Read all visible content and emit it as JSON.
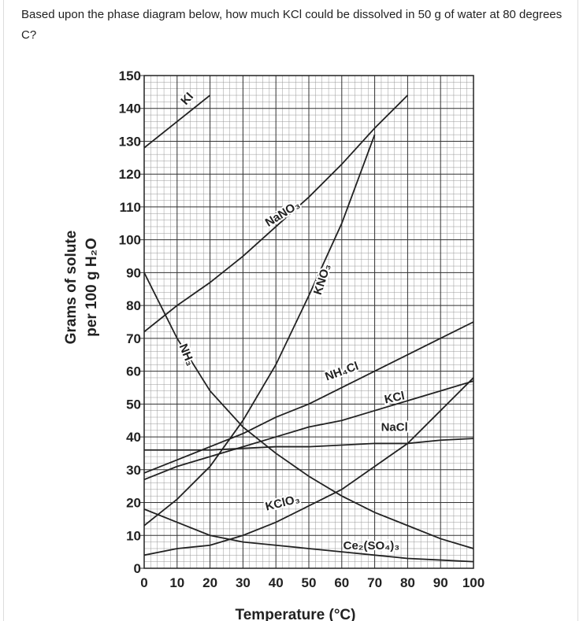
{
  "question": "Based upon the phase diagram below, how much KCl could be dissolved in 50 g of water at 80 degrees C?",
  "chart_data": {
    "type": "line",
    "ylabel": [
      "Grams of solute",
      "per 100 g H₂O"
    ],
    "xlabel": "Temperature (°C)",
    "x": [
      0,
      10,
      20,
      30,
      40,
      50,
      60,
      70,
      80,
      90,
      100
    ],
    "xlim": [
      0,
      100
    ],
    "ylim": [
      0,
      150
    ],
    "xticks": [
      0,
      10,
      20,
      30,
      40,
      50,
      60,
      70,
      80,
      90,
      100
    ],
    "yticks": [
      0,
      10,
      20,
      30,
      40,
      50,
      60,
      70,
      80,
      90,
      100,
      110,
      120,
      130,
      140,
      150
    ],
    "grid": true,
    "series": [
      {
        "name": "KI",
        "color": "#222222",
        "values": [
          128,
          136,
          144,
          null,
          null,
          null,
          null,
          null,
          null,
          null,
          null
        ]
      },
      {
        "name": "NaNO₃",
        "color": "#222222",
        "values": [
          72,
          80,
          87,
          95,
          104,
          113,
          123,
          134,
          144,
          null,
          null
        ]
      },
      {
        "name": "KNO₃",
        "color": "#222222",
        "values": [
          13,
          21,
          31,
          45,
          62,
          83,
          105,
          132,
          null,
          null,
          null
        ]
      },
      {
        "name": "NH₃",
        "color": "#222222",
        "values": [
          90,
          70,
          54,
          43,
          35,
          28,
          22,
          17,
          13,
          9,
          6
        ]
      },
      {
        "name": "NH₄Cl",
        "color": "#222222",
        "values": [
          29,
          33,
          37,
          41,
          46,
          50,
          55,
          60,
          65,
          70,
          75
        ]
      },
      {
        "name": "KCl",
        "color": "#222222",
        "values": [
          27,
          31,
          34,
          37,
          40,
          43,
          45,
          48,
          51,
          54,
          57
        ]
      },
      {
        "name": "NaCl",
        "color": "#222222",
        "values": [
          36,
          36,
          36,
          36.5,
          37,
          37,
          37.5,
          38,
          38,
          39,
          39.5
        ]
      },
      {
        "name": "KClO₃",
        "color": "#222222",
        "values": [
          4,
          6,
          7,
          10,
          14,
          19,
          24,
          31,
          38,
          48,
          58
        ]
      },
      {
        "name": "Ce₂(SO₄)₃",
        "color": "#222222",
        "values": [
          18,
          14,
          10,
          8,
          7,
          6,
          5,
          4,
          3,
          2.5,
          2
        ]
      }
    ]
  }
}
